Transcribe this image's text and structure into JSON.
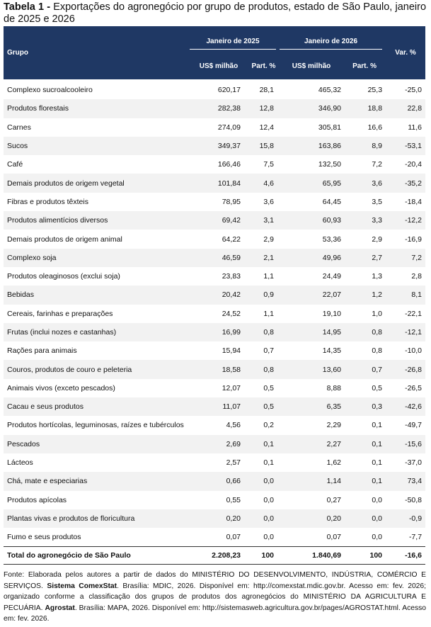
{
  "title": {
    "label": "Tabela 1 -",
    "text": "Exportações do agronegócio por grupo de produtos, estado de São Paulo, janeiro de 2025 e 2026"
  },
  "table": {
    "header": {
      "group": "Grupo",
      "period_2025": "Janeiro de 2025",
      "period_2026": "Janeiro de 2026",
      "var": "Var. %",
      "sub": [
        "US$ milhão",
        "Part. %",
        "US$ milhão",
        "Part. %"
      ]
    },
    "rows": [
      [
        "Complexo sucroalcooleiro",
        "620,17",
        "28,1",
        "465,32",
        "25,3",
        "-25,0"
      ],
      [
        "Produtos florestais",
        "282,38",
        "12,8",
        "346,90",
        "18,8",
        "22,8"
      ],
      [
        "Carnes",
        "274,09",
        "12,4",
        "305,81",
        "16,6",
        "11,6"
      ],
      [
        "Sucos",
        "349,37",
        "15,8",
        "163,86",
        "8,9",
        "-53,1"
      ],
      [
        "Café",
        "166,46",
        "7,5",
        "132,50",
        "7,2",
        "-20,4"
      ],
      [
        "Demais produtos de origem vegetal",
        "101,84",
        "4,6",
        "65,95",
        "3,6",
        "-35,2"
      ],
      [
        "Fibras e produtos têxteis",
        "78,95",
        "3,6",
        "64,45",
        "3,5",
        "-18,4"
      ],
      [
        "Produtos alimentícios diversos",
        "69,42",
        "3,1",
        "60,93",
        "3,3",
        "-12,2"
      ],
      [
        "Demais produtos de origem animal",
        "64,22",
        "2,9",
        "53,36",
        "2,9",
        "-16,9"
      ],
      [
        "Complexo soja",
        "46,59",
        "2,1",
        "49,96",
        "2,7",
        "7,2"
      ],
      [
        "Produtos oleaginosos (exclui soja)",
        "23,83",
        "1,1",
        "24,49",
        "1,3",
        "2,8"
      ],
      [
        "Bebidas",
        "20,42",
        "0,9",
        "22,07",
        "1,2",
        "8,1"
      ],
      [
        "Cereais, farinhas e preparações",
        "24,52",
        "1,1",
        "19,10",
        "1,0",
        "-22,1"
      ],
      [
        "Frutas (inclui nozes e castanhas)",
        "16,99",
        "0,8",
        "14,95",
        "0,8",
        "-12,1"
      ],
      [
        "Rações para animais",
        "15,94",
        "0,7",
        "14,35",
        "0,8",
        "-10,0"
      ],
      [
        "Couros, produtos de couro e peleteria",
        "18,58",
        "0,8",
        "13,60",
        "0,7",
        "-26,8"
      ],
      [
        "Animais vivos (exceto pescados)",
        "12,07",
        "0,5",
        "8,88",
        "0,5",
        "-26,5"
      ],
      [
        "Cacau e seus produtos",
        "11,07",
        "0,5",
        "6,35",
        "0,3",
        "-42,6"
      ],
      [
        "Produtos hortícolas, leguminosas, raízes e tubérculos",
        "4,56",
        "0,2",
        "2,29",
        "0,1",
        "-49,7"
      ],
      [
        "Pescados",
        "2,69",
        "0,1",
        "2,27",
        "0,1",
        "-15,6"
      ],
      [
        "Lácteos",
        "2,57",
        "0,1",
        "1,62",
        "0,1",
        "-37,0"
      ],
      [
        "Chá, mate e especiarias",
        "0,66",
        "0,0",
        "1,14",
        "0,1",
        "73,4"
      ],
      [
        "Produtos apícolas",
        "0,55",
        "0,0",
        "0,27",
        "0,0",
        "-50,8"
      ],
      [
        "Plantas vivas e produtos de floricultura",
        "0,20",
        "0,0",
        "0,20",
        "0,0",
        "-0,9"
      ],
      [
        "Fumo e seus produtos",
        "0,07",
        "0,0",
        "0,07",
        "0,0",
        "-7,7"
      ]
    ],
    "total": [
      "Total do agronegócio de São Paulo",
      "2.208,23",
      "100",
      "1.840,69",
      "100",
      "-16,6"
    ]
  },
  "footnote": [
    "Fonte: Elaborada pelos autores a partir de dados do MINISTÉRIO DO DESENVOLVIMENTO, INDÚSTRIA, COMÉRCIO E SERVIÇOS. ",
    "Sistema ComexStat",
    ". Brasília: MDIC, 2026. Disponível em: http://comexstat.mdic.gov.br. Acesso em: fev. 2026; organizado conforme a classificação dos grupos de produtos dos agronegócios do MINISTÉRIO DA AGRICULTURA E PECUÁRIA. ",
    "Agrostat",
    ". Brasília: MAPA, 2026. Disponível em: http://sistemasweb.agricultura.gov.br/pages/AGROSTAT.html. Acesso em: fev. 2026."
  ]
}
